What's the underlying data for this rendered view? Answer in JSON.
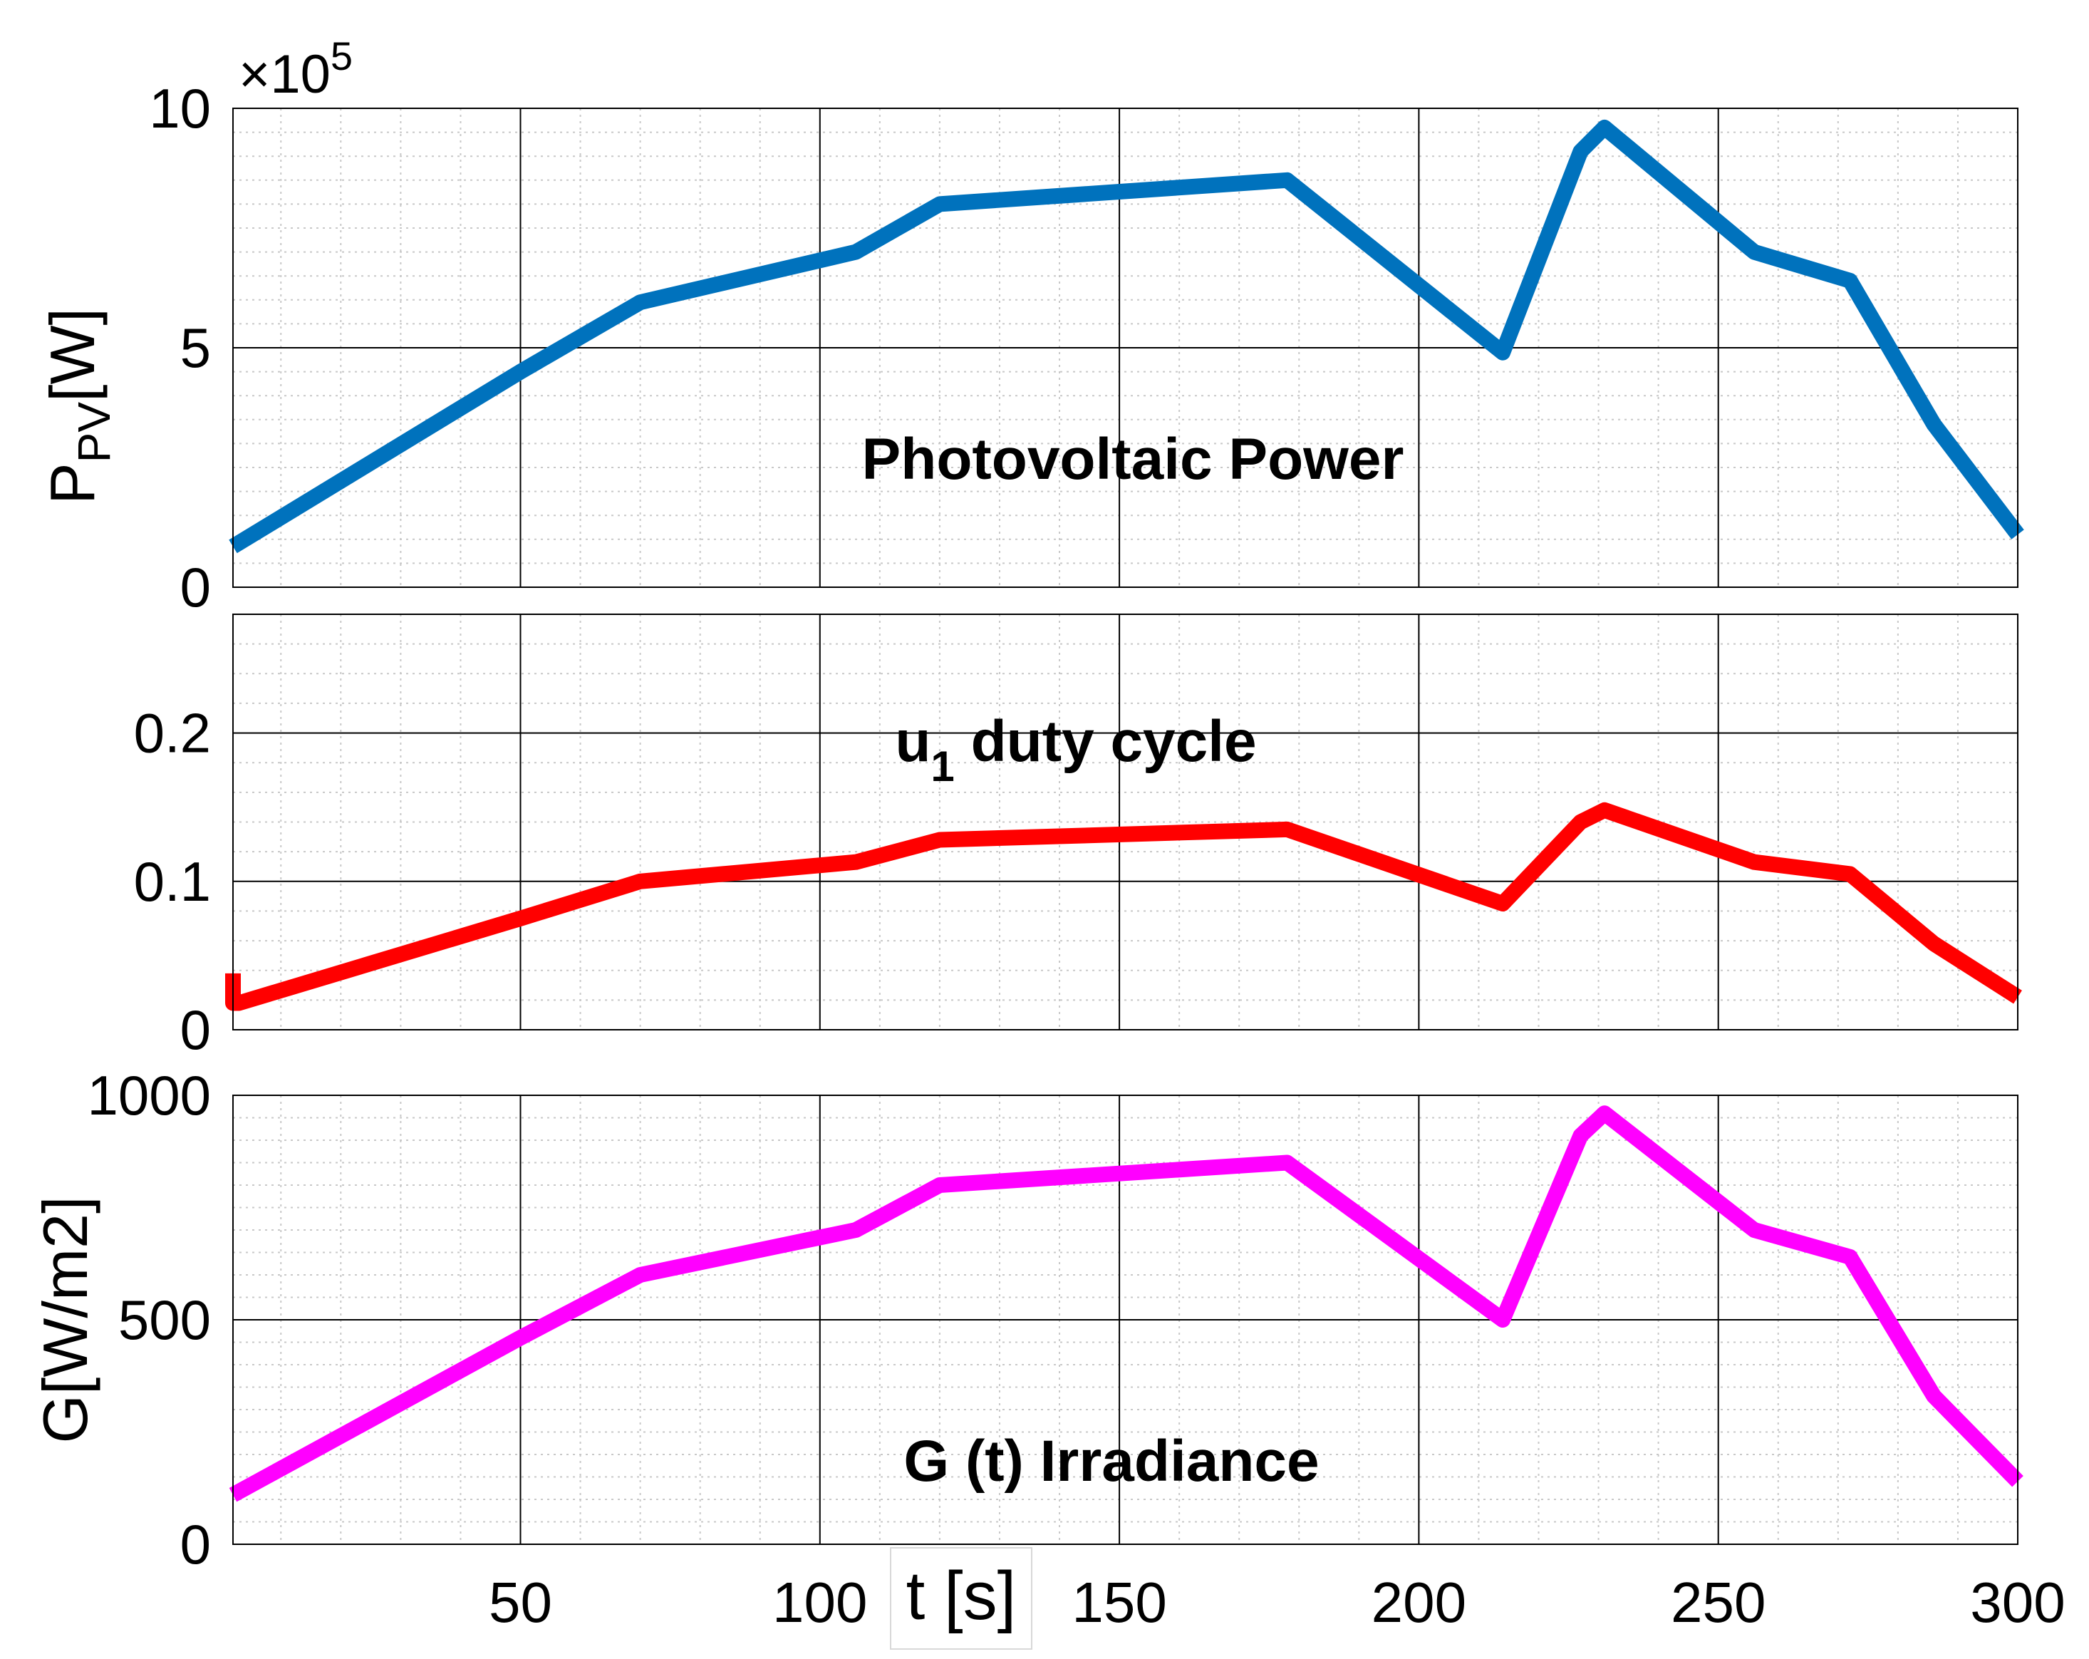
{
  "colors": {
    "power": "#0072BD",
    "duty": "#FF0000",
    "irradiance": "#FF00FF",
    "grid_major": "#000000",
    "grid_minor": "#C8C8C8",
    "axes": "#000000",
    "text": "#000000"
  },
  "x_axis": {
    "label": "t [s]",
    "xlim": [
      2,
      300
    ],
    "ticks": [
      50,
      100,
      150,
      200,
      250,
      300
    ],
    "tick_labels": [
      "50",
      "100",
      "150",
      "200",
      "250",
      "300"
    ]
  },
  "chart_data": [
    {
      "type": "line",
      "title": "Photovoltaic Power",
      "ylabel_main": "P",
      "ylabel_sub": "PV",
      "ylabel_unit": "[W]",
      "scale_label_base": "×10",
      "scale_label_exp": "5",
      "ylim": [
        0,
        10
      ],
      "yticks": [
        0,
        5,
        10
      ],
      "ytick_labels": [
        "0",
        "5",
        "10"
      ],
      "series": [
        {
          "name": "Photovoltaic Power",
          "color": "#0072BD",
          "x": [
            2,
            50,
            70,
            106,
            120,
            178,
            214,
            227,
            231,
            256,
            272,
            286,
            300
          ],
          "y": [
            0.85,
            4.5,
            5.95,
            7.0,
            8.0,
            8.5,
            4.9,
            9.1,
            9.6,
            7.0,
            6.4,
            3.4,
            1.1
          ]
        }
      ]
    },
    {
      "type": "line",
      "title_main": "u",
      "title_sub": "1",
      "title_rest": " duty cycle",
      "ylim": [
        0,
        0.28
      ],
      "yticks": [
        0,
        0.1,
        0.2
      ],
      "ytick_labels": [
        "0",
        "0.1",
        "0.2"
      ],
      "series": [
        {
          "name": "u1 duty cycle",
          "color": "#FF0000",
          "x": [
            2,
            2,
            3,
            50,
            70,
            106,
            120,
            178,
            214,
            227,
            231,
            256,
            272,
            286,
            300
          ],
          "y": [
            0.038,
            0.018,
            0.018,
            0.075,
            0.1,
            0.113,
            0.128,
            0.135,
            0.085,
            0.14,
            0.148,
            0.113,
            0.105,
            0.058,
            0.022
          ]
        }
      ]
    },
    {
      "type": "line",
      "title": "G (t) Irradiance",
      "ylabel": "G[W/m2]",
      "ylim": [
        0,
        1000
      ],
      "yticks": [
        0,
        500,
        1000
      ],
      "ytick_labels": [
        "0",
        "500",
        "1000"
      ],
      "series": [
        {
          "name": "G (t) Irradiance",
          "color": "#FF00FF",
          "x": [
            2,
            50,
            70,
            106,
            120,
            178,
            214,
            227,
            231,
            256,
            272,
            286,
            300
          ],
          "y": [
            110,
            460,
            600,
            700,
            800,
            850,
            500,
            910,
            960,
            700,
            640,
            330,
            140
          ]
        }
      ]
    }
  ]
}
